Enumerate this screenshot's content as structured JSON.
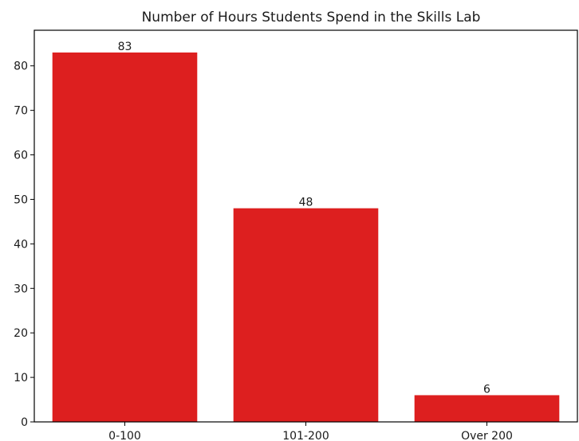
{
  "chart_data": {
    "type": "bar",
    "title": "Number of Hours Students Spend in the Skills Lab",
    "categories": [
      "0-100",
      "101-200",
      "Over 200"
    ],
    "values": [
      83,
      48,
      6
    ],
    "data_labels": [
      "83",
      "48",
      "6"
    ],
    "xlabel": "",
    "ylabel": "",
    "ylim": [
      0,
      88
    ],
    "yticks": [
      0,
      10,
      20,
      30,
      40,
      50,
      60,
      70,
      80
    ],
    "ytick_labels": [
      "0",
      "10",
      "20",
      "30",
      "40",
      "50",
      "60",
      "70",
      "80"
    ],
    "grid": false,
    "bar_color": "#dd1f1f"
  }
}
